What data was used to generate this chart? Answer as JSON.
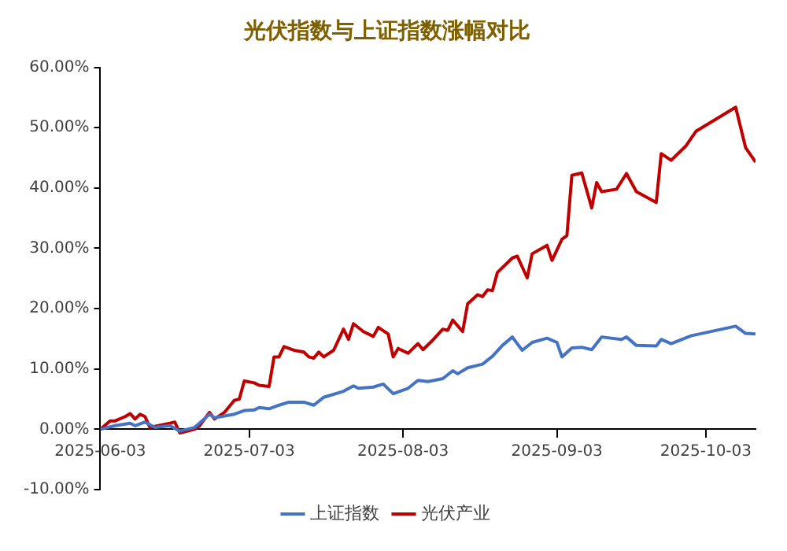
{
  "chart_data": {
    "type": "line",
    "title": "光伏指数与上证指数涨幅对比",
    "xlim": [
      "2025-06-03",
      "2025-10-13"
    ],
    "xticks": [
      "2025-06-03",
      "2025-07-03",
      "2025-08-03",
      "2025-09-03",
      "2025-10-03"
    ],
    "ylim": [
      -10,
      60
    ],
    "yticks": [
      {
        "value": -10,
        "label": "-10.00%"
      },
      {
        "value": 0,
        "label": "0.00%"
      },
      {
        "value": 10,
        "label": "10.00%"
      },
      {
        "value": 20,
        "label": "20.00%"
      },
      {
        "value": 30,
        "label": "30.00%"
      },
      {
        "value": 40,
        "label": "40.00%"
      },
      {
        "value": 50,
        "label": "50.00%"
      },
      {
        "value": 60,
        "label": "60.00%"
      }
    ],
    "grid": false,
    "legend": "bottom",
    "marker": "none",
    "line_style": "solid",
    "series": [
      {
        "name": "上证指数",
        "color": "#4472c4",
        "x": [
          "2025-06-03",
          "2025-06-06",
          "2025-06-09",
          "2025-06-10",
          "2025-06-12",
          "2025-06-14",
          "2025-06-17",
          "2025-06-19",
          "2025-06-22",
          "2025-06-25",
          "2025-06-26",
          "2025-06-30",
          "2025-07-02",
          "2025-07-04",
          "2025-07-05",
          "2025-07-07",
          "2025-07-09",
          "2025-07-11",
          "2025-07-14",
          "2025-07-16",
          "2025-07-18",
          "2025-07-22",
          "2025-07-24",
          "2025-07-25",
          "2025-07-28",
          "2025-07-30",
          "2025-08-01",
          "2025-08-04",
          "2025-08-06",
          "2025-08-08",
          "2025-08-11",
          "2025-08-13",
          "2025-08-14",
          "2025-08-16",
          "2025-08-19",
          "2025-08-21",
          "2025-08-23",
          "2025-08-25",
          "2025-08-27",
          "2025-08-29",
          "2025-09-01",
          "2025-09-03",
          "2025-09-04",
          "2025-09-06",
          "2025-09-08",
          "2025-09-10",
          "2025-09-12",
          "2025-09-16",
          "2025-09-17",
          "2025-09-19",
          "2025-09-23",
          "2025-09-24",
          "2025-09-26",
          "2025-09-30",
          "2025-10-09",
          "2025-10-11",
          "2025-10-13"
        ],
        "values": [
          0,
          0.6,
          1.0,
          0.6,
          1.2,
          0.3,
          0.6,
          -0.3,
          0.3,
          2.5,
          1.9,
          2.5,
          3.1,
          3.2,
          3.6,
          3.4,
          4.0,
          4.5,
          4.5,
          4.0,
          5.3,
          6.3,
          7.2,
          6.8,
          7.0,
          7.5,
          5.9,
          6.8,
          8.1,
          7.9,
          8.4,
          9.7,
          9.2,
          10.2,
          10.8,
          12.1,
          13.9,
          15.3,
          13.1,
          14.4,
          15.1,
          14.4,
          12.0,
          13.5,
          13.6,
          13.2,
          15.3,
          14.9,
          15.3,
          13.9,
          13.8,
          14.9,
          14.2,
          15.5,
          17.1,
          15.9,
          15.8
        ]
      },
      {
        "name": "光伏产业",
        "color": "#c00000",
        "x": [
          "2025-06-03",
          "2025-06-05",
          "2025-06-06",
          "2025-06-08",
          "2025-06-09",
          "2025-06-10",
          "2025-06-11",
          "2025-06-12",
          "2025-06-13",
          "2025-06-17",
          "2025-06-18",
          "2025-06-19",
          "2025-06-22",
          "2025-06-23",
          "2025-06-25",
          "2025-06-26",
          "2025-06-28",
          "2025-06-30",
          "2025-07-01",
          "2025-07-02",
          "2025-07-04",
          "2025-07-05",
          "2025-07-07",
          "2025-07-08",
          "2025-07-09",
          "2025-07-10",
          "2025-07-12",
          "2025-07-14",
          "2025-07-15",
          "2025-07-16",
          "2025-07-17",
          "2025-07-18",
          "2025-07-20",
          "2025-07-22",
          "2025-07-23",
          "2025-07-24",
          "2025-07-26",
          "2025-07-28",
          "2025-07-29",
          "2025-07-31",
          "2025-08-01",
          "2025-08-02",
          "2025-08-04",
          "2025-08-06",
          "2025-08-07",
          "2025-08-09",
          "2025-08-11",
          "2025-08-12",
          "2025-08-13",
          "2025-08-15",
          "2025-08-16",
          "2025-08-18",
          "2025-08-19",
          "2025-08-20",
          "2025-08-21",
          "2025-08-22",
          "2025-08-25",
          "2025-08-26",
          "2025-08-28",
          "2025-08-29",
          "2025-09-01",
          "2025-09-02",
          "2025-09-04",
          "2025-09-05",
          "2025-09-06",
          "2025-09-08",
          "2025-09-10",
          "2025-09-11",
          "2025-09-12",
          "2025-09-15",
          "2025-09-17",
          "2025-09-19",
          "2025-09-23",
          "2025-09-24",
          "2025-09-26",
          "2025-09-29",
          "2025-10-01",
          "2025-10-09",
          "2025-10-11",
          "2025-10-13"
        ],
        "values": [
          0,
          1.4,
          1.4,
          2.1,
          2.6,
          1.7,
          2.5,
          2.1,
          0.3,
          1.0,
          1.2,
          -0.6,
          0,
          0.6,
          2.8,
          1.7,
          2.8,
          4.8,
          5.0,
          8.0,
          7.7,
          7.3,
          7.1,
          12.0,
          12.0,
          13.7,
          13.1,
          12.8,
          12.0,
          11.8,
          12.8,
          12.0,
          13.1,
          16.6,
          14.9,
          17.5,
          16.2,
          15.4,
          16.9,
          15.8,
          12.0,
          13.4,
          12.6,
          14.2,
          13.2,
          14.8,
          16.6,
          16.4,
          18.1,
          16.2,
          20.8,
          22.3,
          22.0,
          23.1,
          23.0,
          26.0,
          28.4,
          28.7,
          25.1,
          29.1,
          30.5,
          28.0,
          31.5,
          32.1,
          42.1,
          42.5,
          36.7,
          40.9,
          39.4,
          39.8,
          42.4,
          39.4,
          37.6,
          45.7,
          44.6,
          47.0,
          49.4,
          53.4,
          46.7,
          44.3
        ]
      }
    ]
  }
}
